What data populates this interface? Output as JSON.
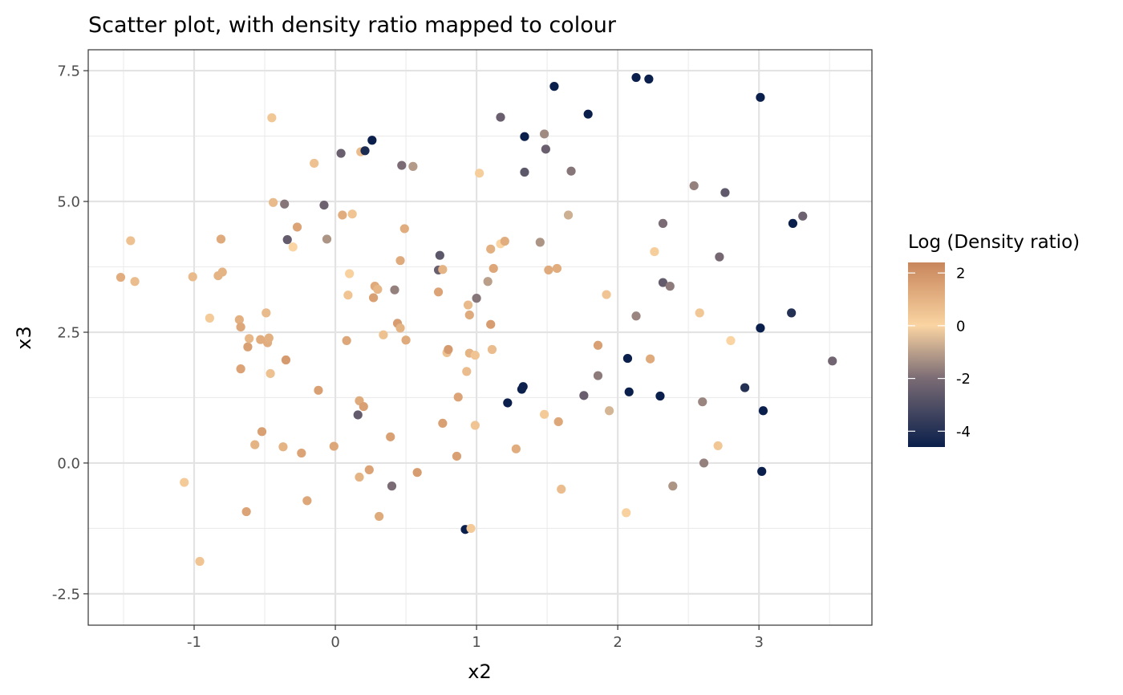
{
  "chart_data": {
    "type": "scatter",
    "title": "Scatter plot, with density ratio mapped to colour",
    "xlabel": "x2",
    "ylabel": "x3",
    "xlim": [
      -1.75,
      3.8
    ],
    "ylim": [
      -3.1,
      7.9
    ],
    "x_ticks": [
      -1,
      0,
      1,
      2,
      3
    ],
    "x_tick_labels": [
      "-1",
      "0",
      "1",
      "2",
      "3"
    ],
    "y_ticks": [
      -2.5,
      0.0,
      2.5,
      5.0,
      7.5
    ],
    "y_tick_labels": [
      "-2.5",
      "0.0",
      "2.5",
      "5.0",
      "7.5"
    ],
    "grid": true,
    "legend": {
      "title": "Log (Density ratio)",
      "position": "right",
      "range": [
        -4.6,
        2.4
      ],
      "breaks": [
        2,
        0,
        -2,
        -4
      ],
      "break_labels": [
        "2",
        "0",
        "-2",
        "-4"
      ],
      "colors": [
        "#0a1f4b",
        "#7a6b74",
        "#fad4a2",
        "#c8865c"
      ]
    },
    "points": [
      [
        -1.52,
        3.55,
        1.2
      ],
      [
        -1.45,
        4.25,
        0.6
      ],
      [
        -1.42,
        3.47,
        0.7
      ],
      [
        -1.07,
        -0.37,
        0.3
      ],
      [
        -1.01,
        3.56,
        0.8
      ],
      [
        -0.96,
        -1.88,
        0.5
      ],
      [
        -0.89,
        2.77,
        0.3
      ],
      [
        -0.83,
        3.58,
        1.0
      ],
      [
        -0.81,
        4.28,
        1.3
      ],
      [
        -0.8,
        3.65,
        1.0
      ],
      [
        -0.68,
        2.74,
        1.1
      ],
      [
        -0.67,
        2.6,
        1.4
      ],
      [
        -0.67,
        1.8,
        1.5
      ],
      [
        -0.63,
        -0.93,
        1.5
      ],
      [
        -0.62,
        2.22,
        1.6
      ],
      [
        -0.61,
        2.38,
        0.9
      ],
      [
        -0.57,
        0.35,
        1.0
      ],
      [
        -0.53,
        2.36,
        1.2
      ],
      [
        -0.52,
        0.6,
        1.6
      ],
      [
        -0.49,
        2.87,
        0.8
      ],
      [
        -0.48,
        2.3,
        1.2
      ],
      [
        -0.47,
        2.39,
        1.1
      ],
      [
        -0.46,
        1.71,
        0.6
      ],
      [
        -0.45,
        6.6,
        0.4
      ],
      [
        -0.44,
        4.98,
        0.8
      ],
      [
        -0.37,
        0.31,
        1.0
      ],
      [
        -0.36,
        4.95,
        -1.8
      ],
      [
        -0.35,
        1.97,
        1.8
      ],
      [
        -0.34,
        4.27,
        -2.5
      ],
      [
        -0.3,
        4.13,
        0.0
      ],
      [
        -0.27,
        4.51,
        1.5
      ],
      [
        -0.24,
        0.19,
        1.5
      ],
      [
        -0.2,
        -0.72,
        1.4
      ],
      [
        -0.15,
        5.73,
        0.6
      ],
      [
        -0.12,
        1.39,
        1.6
      ],
      [
        -0.08,
        4.93,
        -2.3
      ],
      [
        -0.06,
        4.28,
        -1.2
      ],
      [
        -0.01,
        0.32,
        1.4
      ],
      [
        0.04,
        5.92,
        -2.4
      ],
      [
        0.05,
        4.74,
        1.2
      ],
      [
        0.08,
        2.34,
        1.4
      ],
      [
        0.09,
        3.21,
        0.5
      ],
      [
        0.1,
        3.62,
        0.1
      ],
      [
        0.12,
        4.76,
        0.5
      ],
      [
        0.16,
        0.92,
        -2.5
      ],
      [
        0.17,
        -0.27,
        1.0
      ],
      [
        0.17,
        1.19,
        1.3
      ],
      [
        0.18,
        5.95,
        0.7
      ],
      [
        0.2,
        1.08,
        1.6
      ],
      [
        0.21,
        5.97,
        -4.2
      ],
      [
        0.24,
        -0.13,
        1.5
      ],
      [
        0.26,
        6.17,
        -4.6
      ],
      [
        0.27,
        3.16,
        1.6
      ],
      [
        0.28,
        3.38,
        1.3
      ],
      [
        0.3,
        3.32,
        0.9
      ],
      [
        0.31,
        -1.02,
        1.3
      ],
      [
        0.34,
        2.45,
        0.6
      ],
      [
        0.39,
        0.5,
        1.6
      ],
      [
        0.4,
        -0.44,
        -2.0
      ],
      [
        0.42,
        3.31,
        -1.6
      ],
      [
        0.44,
        2.67,
        1.7
      ],
      [
        0.46,
        2.58,
        1.0
      ],
      [
        0.46,
        3.87,
        1.3
      ],
      [
        0.47,
        5.69,
        -2.0
      ],
      [
        0.49,
        4.48,
        1.2
      ],
      [
        0.5,
        2.35,
        1.3
      ],
      [
        0.55,
        5.67,
        -1.1
      ],
      [
        0.58,
        -0.18,
        1.7
      ],
      [
        0.73,
        3.69,
        -2.4
      ],
      [
        0.73,
        3.27,
        1.5
      ],
      [
        0.74,
        3.97,
        -2.7
      ],
      [
        0.76,
        3.7,
        1.0
      ],
      [
        0.76,
        0.76,
        1.6
      ],
      [
        0.79,
        2.11,
        0.6
      ],
      [
        0.8,
        2.17,
        1.8
      ],
      [
        0.86,
        0.13,
        1.6
      ],
      [
        0.87,
        1.26,
        1.5
      ],
      [
        0.92,
        -1.27,
        -4.6
      ],
      [
        0.93,
        1.75,
        0.7
      ],
      [
        0.94,
        3.02,
        0.8
      ],
      [
        0.95,
        2.83,
        1.3
      ],
      [
        0.95,
        2.1,
        1.0
      ],
      [
        0.96,
        -1.25,
        0.3
      ],
      [
        0.99,
        2.06,
        0.5
      ],
      [
        0.99,
        0.72,
        0.5
      ],
      [
        1.0,
        3.15,
        -1.8
      ],
      [
        1.02,
        5.54,
        0.2
      ],
      [
        1.08,
        3.47,
        -1.0
      ],
      [
        1.1,
        4.09,
        1.1
      ],
      [
        1.1,
        2.65,
        1.7
      ],
      [
        1.11,
        2.17,
        0.7
      ],
      [
        1.12,
        3.72,
        1.4
      ],
      [
        1.17,
        6.61,
        -2.4
      ],
      [
        1.17,
        4.19,
        0.0
      ],
      [
        1.2,
        4.24,
        1.2
      ],
      [
        1.22,
        1.15,
        -4.6
      ],
      [
        1.28,
        0.27,
        1.2
      ],
      [
        1.32,
        1.41,
        -4.6
      ],
      [
        1.33,
        1.46,
        -4.5
      ],
      [
        1.34,
        6.24,
        -4.6
      ],
      [
        1.34,
        5.56,
        -2.7
      ],
      [
        1.45,
        4.22,
        -1.2
      ],
      [
        1.48,
        6.29,
        -1.4
      ],
      [
        1.48,
        0.93,
        0.3
      ],
      [
        1.49,
        6.0,
        -2.4
      ],
      [
        1.51,
        3.69,
        1.3
      ],
      [
        1.55,
        7.2,
        -4.6
      ],
      [
        1.57,
        3.72,
        1.2
      ],
      [
        1.58,
        0.79,
        1.4
      ],
      [
        1.6,
        -0.5,
        0.7
      ],
      [
        1.65,
        4.74,
        -0.7
      ],
      [
        1.67,
        5.58,
        -1.8
      ],
      [
        1.76,
        1.29,
        -2.4
      ],
      [
        1.79,
        6.67,
        -4.6
      ],
      [
        1.86,
        2.25,
        1.6
      ],
      [
        1.86,
        1.67,
        -1.7
      ],
      [
        1.92,
        3.22,
        0.5
      ],
      [
        1.94,
        1.0,
        -0.6
      ],
      [
        2.06,
        -0.95,
        0.1
      ],
      [
        2.07,
        2.0,
        -4.6
      ],
      [
        2.08,
        1.36,
        -4.6
      ],
      [
        2.13,
        2.81,
        -1.5
      ],
      [
        2.13,
        7.37,
        -4.6
      ],
      [
        2.22,
        7.34,
        -4.6
      ],
      [
        2.23,
        1.99,
        1.3
      ],
      [
        2.26,
        4.04,
        0.2
      ],
      [
        2.3,
        1.28,
        -4.6
      ],
      [
        2.32,
        3.45,
        -2.5
      ],
      [
        2.32,
        4.58,
        -2.0
      ],
      [
        2.37,
        3.38,
        -1.7
      ],
      [
        2.39,
        -0.44,
        -1.2
      ],
      [
        2.54,
        5.3,
        -1.6
      ],
      [
        2.58,
        2.87,
        0.4
      ],
      [
        2.6,
        1.17,
        -1.5
      ],
      [
        2.61,
        0.0,
        -1.6
      ],
      [
        2.71,
        0.33,
        0.4
      ],
      [
        2.72,
        3.94,
        -2.1
      ],
      [
        2.76,
        5.17,
        -2.6
      ],
      [
        2.8,
        2.34,
        0.0
      ],
      [
        2.9,
        1.44,
        -4.0
      ],
      [
        3.01,
        6.99,
        -4.6
      ],
      [
        3.01,
        2.58,
        -4.6
      ],
      [
        3.02,
        -0.16,
        -4.6
      ],
      [
        3.03,
        1.0,
        -4.6
      ],
      [
        3.23,
        2.87,
        -4.0
      ],
      [
        3.24,
        4.58,
        -4.6
      ],
      [
        3.31,
        4.72,
        -2.3
      ],
      [
        3.52,
        1.95,
        -2.2
      ]
    ]
  }
}
